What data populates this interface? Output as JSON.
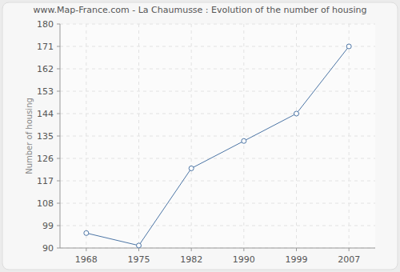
{
  "chart_data": {
    "type": "line",
    "title": "www.Map-France.com - La Chaumusse : Evolution of the number of housing",
    "y_label": "Number of housing",
    "categories": [
      "1968",
      "1975",
      "1982",
      "1990",
      "1999",
      "2007"
    ],
    "values": [
      96,
      91,
      122,
      133,
      144,
      171
    ],
    "color": "#4d76a6",
    "marker": "circle",
    "ylim": [
      90,
      180
    ],
    "yticks": [
      90,
      99,
      108,
      117,
      126,
      135,
      144,
      153,
      162,
      171,
      180
    ],
    "grid": true
  }
}
